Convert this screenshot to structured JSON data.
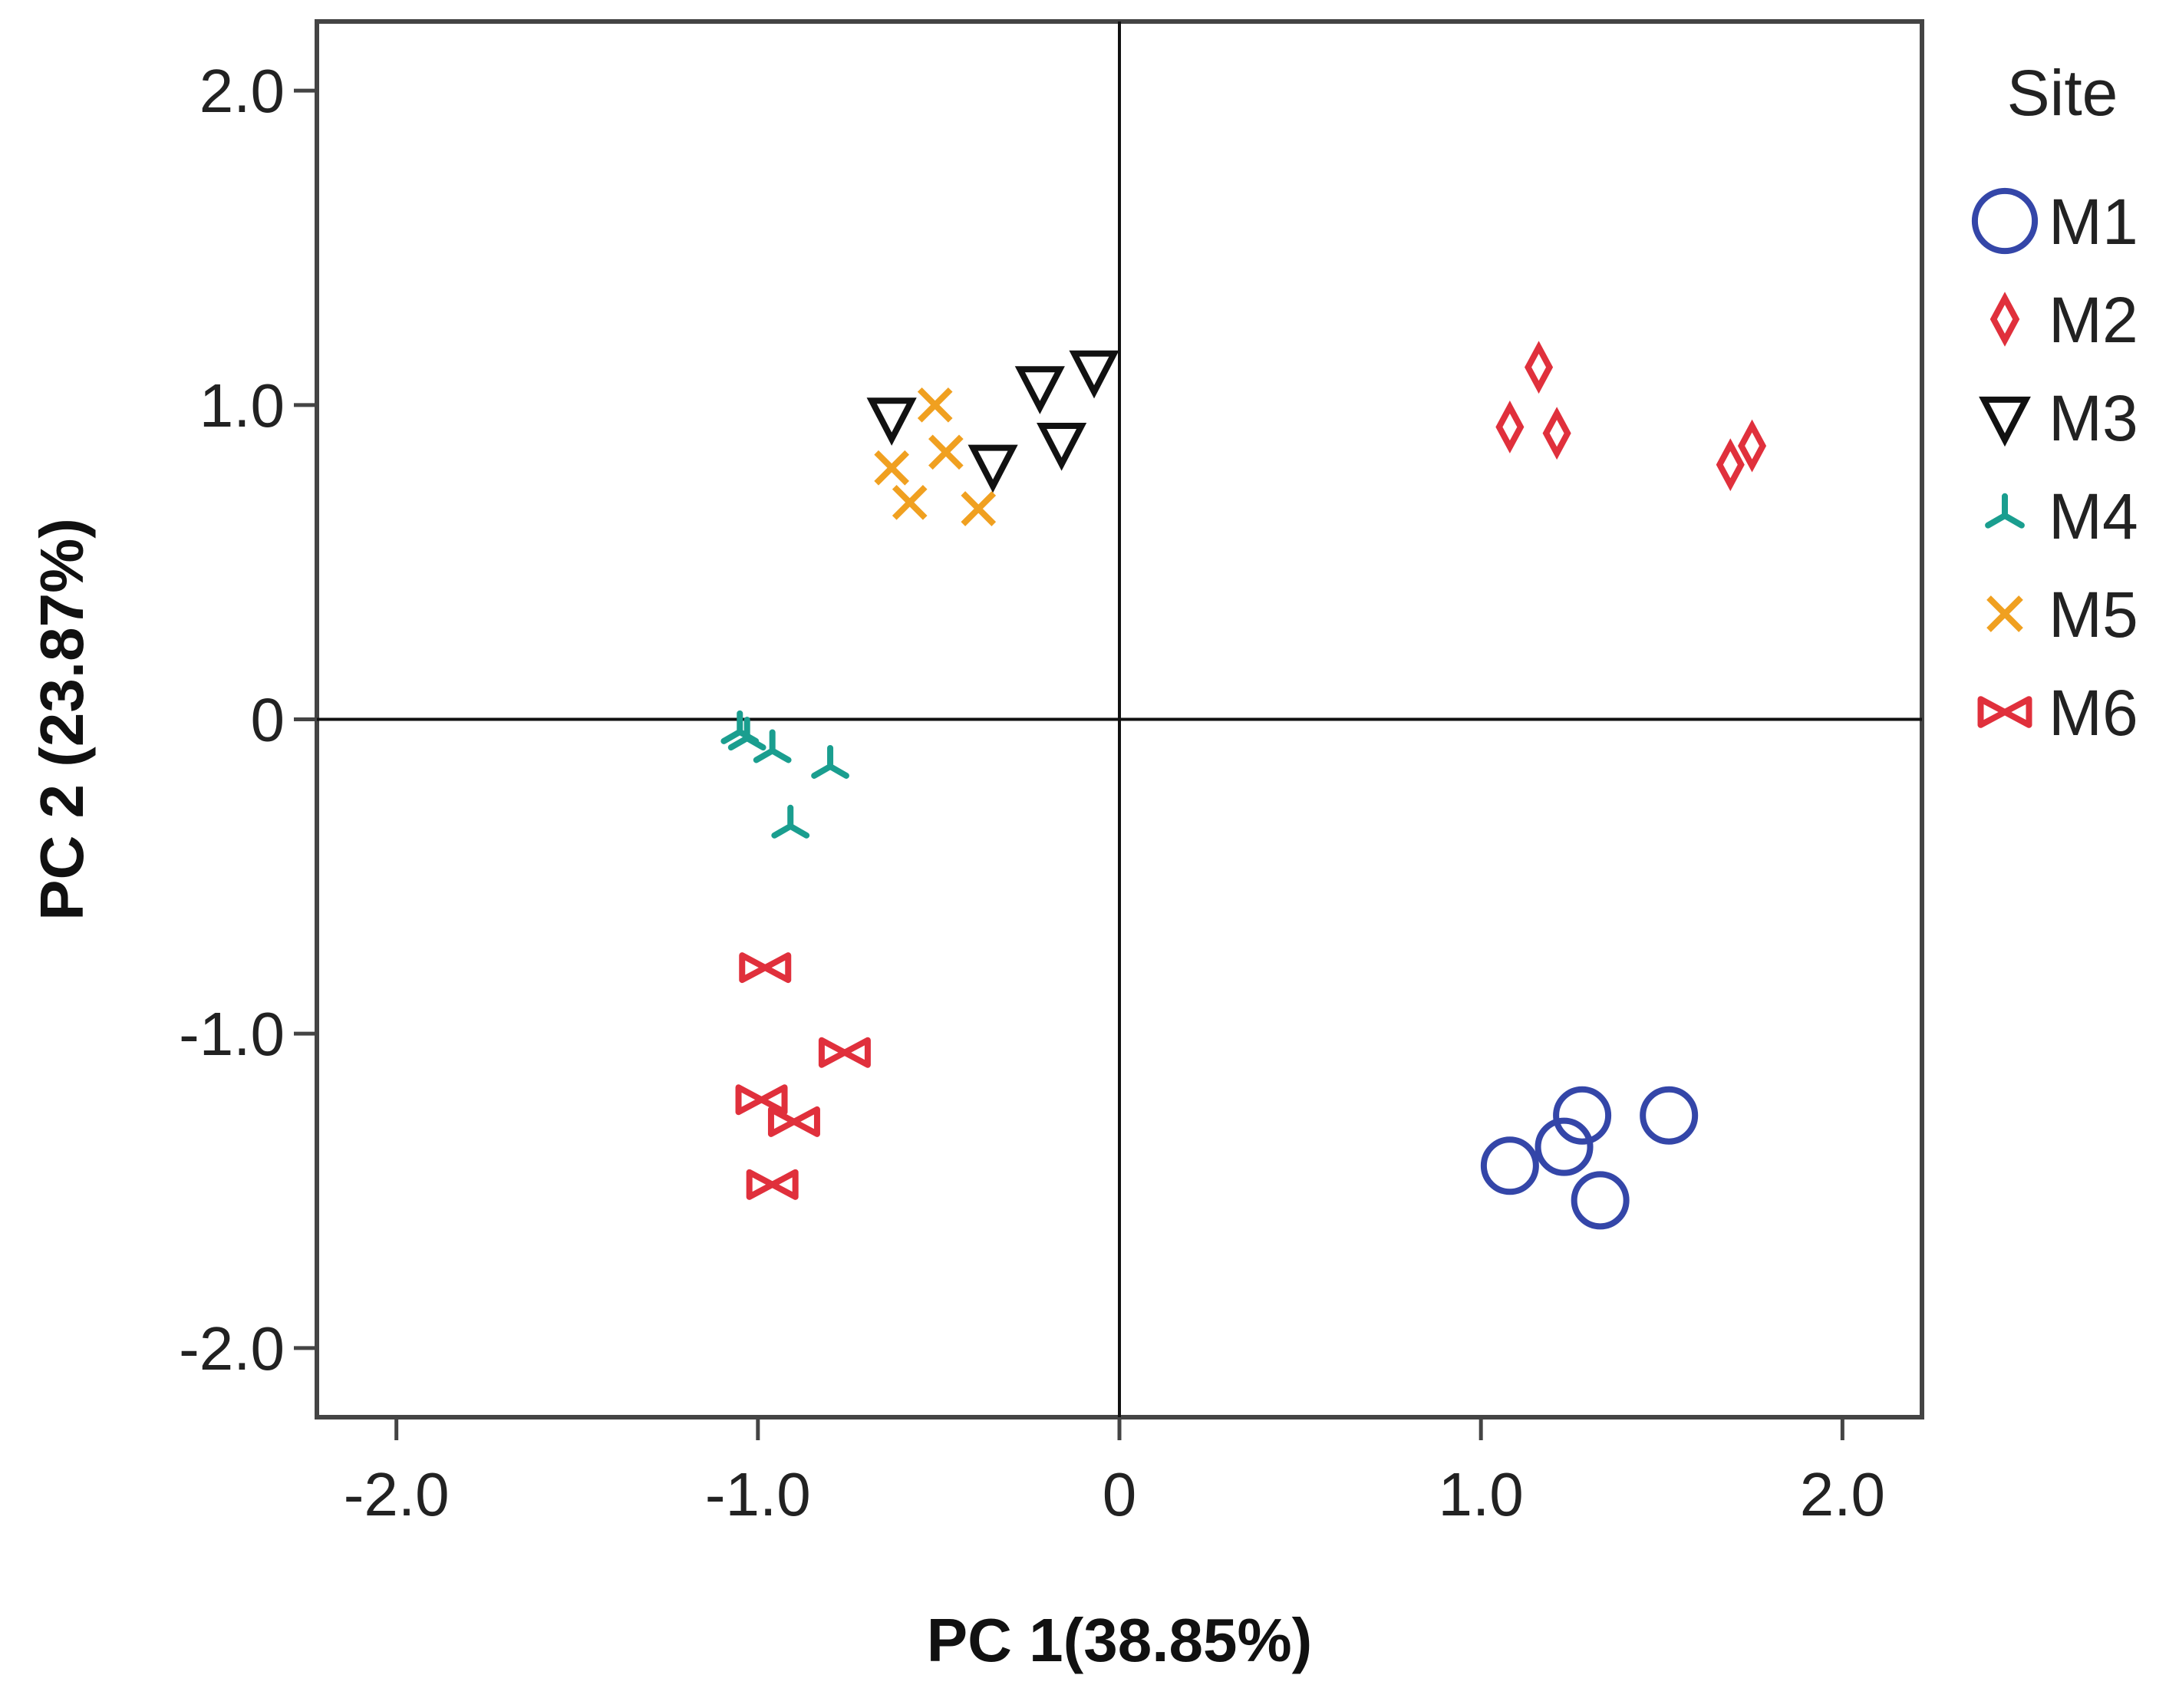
{
  "chart_data": {
    "type": "scatter",
    "xlabel": "PC 1(38.85%)",
    "ylabel": "PC 2 (23.87%)",
    "xlim": [
      -2.22,
      2.22
    ],
    "ylim": [
      -2.22,
      2.22
    ],
    "xticks": [
      -2.0,
      -1.0,
      0,
      1.0,
      2.0
    ],
    "yticks": [
      -2.0,
      -1.0,
      0,
      1.0,
      2.0
    ],
    "xtick_labels": [
      "-2.0",
      "-1.0",
      "0",
      "1.0",
      "2.0"
    ],
    "ytick_labels": [
      "-2.0",
      "-1.0",
      "0",
      "1.0",
      "2.0"
    ],
    "reference_lines": {
      "x": 0,
      "y": 0
    },
    "grid": false,
    "legend": {
      "title": "Site",
      "placement": "right"
    },
    "series": [
      {
        "name": "M1",
        "marker": "circle",
        "color": "#3446a8",
        "points": [
          [
            1.08,
            -1.42
          ],
          [
            1.23,
            -1.36
          ],
          [
            1.28,
            -1.26
          ],
          [
            1.33,
            -1.53
          ],
          [
            1.52,
            -1.26
          ]
        ]
      },
      {
        "name": "M2",
        "marker": "diamond",
        "color": "#e0303c",
        "points": [
          [
            1.08,
            0.93
          ],
          [
            1.16,
            1.12
          ],
          [
            1.21,
            0.91
          ],
          [
            1.69,
            0.81
          ],
          [
            1.75,
            0.87
          ]
        ]
      },
      {
        "name": "M3",
        "marker": "triangle-down",
        "color": "#111111",
        "points": [
          [
            -0.63,
            0.96
          ],
          [
            -0.35,
            0.81
          ],
          [
            -0.22,
            1.06
          ],
          [
            -0.16,
            0.88
          ],
          [
            -0.07,
            1.11
          ]
        ]
      },
      {
        "name": "M4",
        "marker": "tri",
        "color": "#1a9e8f",
        "points": [
          [
            -1.05,
            -0.04
          ],
          [
            -1.03,
            -0.06
          ],
          [
            -0.96,
            -0.1
          ],
          [
            -0.91,
            -0.34
          ],
          [
            -0.8,
            -0.15
          ]
        ]
      },
      {
        "name": "M5",
        "marker": "x",
        "color": "#f0a020",
        "points": [
          [
            -0.63,
            0.8
          ],
          [
            -0.58,
            0.69
          ],
          [
            -0.51,
            1.0
          ],
          [
            -0.48,
            0.85
          ],
          [
            -0.39,
            0.67
          ]
        ]
      },
      {
        "name": "M6",
        "marker": "bowtie",
        "color": "#e0303c",
        "points": [
          [
            -0.98,
            -0.79
          ],
          [
            -0.99,
            -1.21
          ],
          [
            -0.9,
            -1.28
          ],
          [
            -0.76,
            -1.06
          ],
          [
            -0.96,
            -1.48
          ]
        ]
      }
    ]
  }
}
